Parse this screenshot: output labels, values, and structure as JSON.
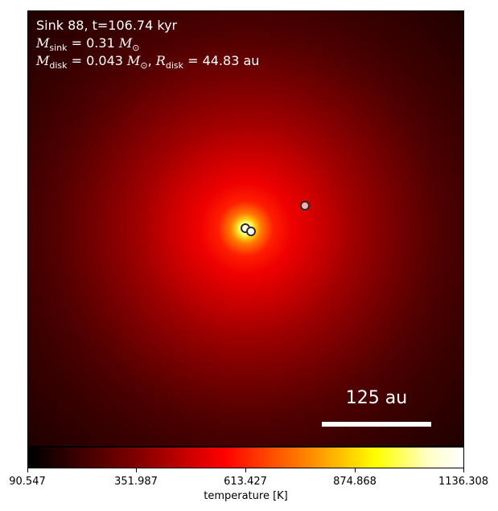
{
  "annotation": {
    "line1": "Sink 88, t=106.74 kyr",
    "msink_value": "= 0.31",
    "mdisk_value": "= 0.043",
    "rdisk_value": "= 44.83 au"
  },
  "sinks": [
    {
      "fill": "#fffff0"
    },
    {
      "fill": "#fffff0"
    },
    {
      "fill": "#f4b0b0"
    }
  ],
  "scalebar": {
    "label": "125 au"
  },
  "colorbar": {
    "label": "temperature [K]",
    "ticks": [
      "90.547",
      "351.987",
      "613.427",
      "874.868",
      "1136.308"
    ],
    "colormap": "hot"
  }
}
